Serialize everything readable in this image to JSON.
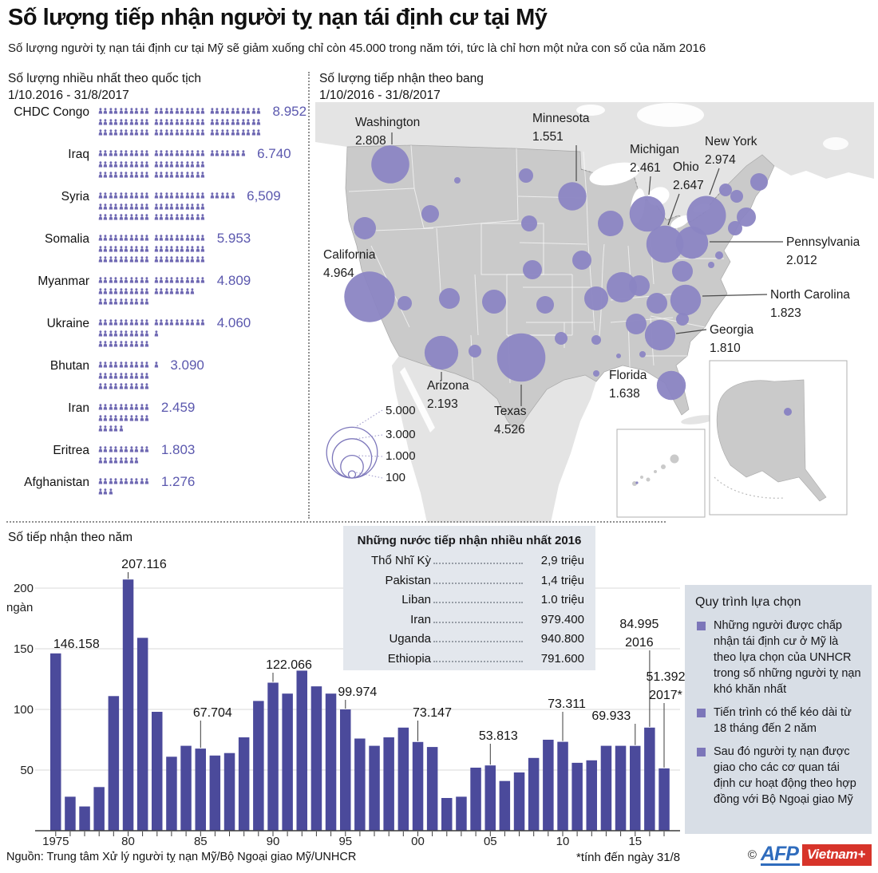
{
  "header": {
    "title": "Số lượng tiếp nhận người tỵ nạn tái định cư tại Mỹ",
    "subtitle": "Số lượng người tỵ nạn tái định cư tại Mỹ sẽ giảm xuống chỉ còn 45.000 trong năm tới, tức là chỉ hơn một nửa con số của năm 2016"
  },
  "colors": {
    "bar": "#4b4a9b",
    "pictogram_icon": "#6e68b2",
    "value_text": "#5b58ae",
    "map_bubble": "#8b85c3",
    "us_land": "#cacaca",
    "neighbor_land": "#e4e4e4",
    "table_bg": "#e3e7ed",
    "process_bg": "#d8dee6",
    "logo_blue": "#2f6cbd",
    "logo_red": "#d7342a"
  },
  "chart_data": [
    {
      "id": "nationalities",
      "type": "bar",
      "style": "pictogram",
      "title": "Số lượng nhiều nhất theo quốc tịch",
      "period": "1/10.2016 - 31/8/2017",
      "unit_per_icon": 100,
      "categories": [
        "CHDC Congo",
        "Iraq",
        "Syria",
        "Somalia",
        "Myanmar",
        "Ukraine",
        "Bhutan",
        "Iran",
        "Eritrea",
        "Afghanistan"
      ],
      "values": [
        8952,
        6740,
        6509,
        5953,
        4809,
        4060,
        3090,
        2459,
        1803,
        1276
      ],
      "display": [
        "8.952",
        "6.740",
        "6,509",
        "5.953",
        "4.809",
        "4.060",
        "3.090",
        "2.459",
        "1.803",
        "1.276"
      ]
    },
    {
      "id": "states",
      "type": "scatter",
      "style": "bubble-map",
      "title": "Số lượng tiếp nhận theo bang",
      "period": "1/10/2016 - 31/8/2017",
      "categories": [
        "Washington",
        "California",
        "Arizona",
        "Texas",
        "Minnesota",
        "Michigan",
        "Ohio",
        "New York",
        "Pennsylvania",
        "North Carolina",
        "Georgia",
        "Florida"
      ],
      "values": [
        2808,
        4964,
        2193,
        4526,
        1551,
        2461,
        2647,
        2974,
        2012,
        1823,
        1810,
        1638
      ],
      "display": [
        "2.808",
        "4.964",
        "2.193",
        "4.526",
        "1.551",
        "2.461",
        "2.647",
        "2.974",
        "2.012",
        "1.823",
        "1.810",
        "1.638"
      ],
      "legend": {
        "values": [
          5000,
          3000,
          1000,
          100
        ],
        "labels": [
          "5.000",
          "3.000",
          "1.000",
          "100"
        ]
      }
    },
    {
      "id": "by_year",
      "type": "bar",
      "title": "Số tiếp nhận theo năm",
      "ylabel": "ngàn",
      "ylim": [
        0,
        220
      ],
      "yticks": [
        50,
        100,
        150,
        200
      ],
      "ytick_labels": [
        "50",
        "100",
        "150",
        "200"
      ],
      "x": [
        1975,
        1976,
        1977,
        1978,
        1979,
        1980,
        1981,
        1982,
        1983,
        1984,
        1985,
        1986,
        1987,
        1988,
        1989,
        1990,
        1991,
        1992,
        1993,
        1994,
        1995,
        1996,
        1997,
        1998,
        1999,
        2000,
        2001,
        2002,
        2003,
        2004,
        2005,
        2006,
        2007,
        2008,
        2009,
        2010,
        2011,
        2012,
        2013,
        2014,
        2015,
        2016,
        2017
      ],
      "values": [
        146.158,
        28,
        20,
        36,
        111,
        207.116,
        159,
        98,
        61,
        70,
        67.704,
        62,
        64,
        77,
        107,
        122.066,
        113,
        132,
        119,
        113,
        99.974,
        76,
        70,
        77,
        85,
        73.147,
        69,
        27,
        28,
        52,
        53.813,
        41,
        48,
        60,
        75,
        73.311,
        56,
        58,
        70,
        70,
        69.933,
        84.995,
        51.392
      ],
      "xtick_labels": [
        [
          "1975",
          "1975"
        ],
        [
          "1980",
          "80"
        ],
        [
          "1985",
          "85"
        ],
        [
          "1990",
          "90"
        ],
        [
          "1995",
          "95"
        ],
        [
          "2000",
          "00"
        ],
        [
          "2005",
          "05"
        ],
        [
          "2010",
          "10"
        ],
        [
          "2015",
          "15"
        ]
      ],
      "point_labels": [
        {
          "x": 1975,
          "label": "146.158"
        },
        {
          "x": 1980,
          "label": "207.116"
        },
        {
          "x": 1985,
          "label": "67.704"
        },
        {
          "x": 1990,
          "label": "122.066"
        },
        {
          "x": 1995,
          "label": "99.974"
        },
        {
          "x": 2000,
          "label": "73.147"
        },
        {
          "x": 2005,
          "label": "53.813"
        },
        {
          "x": 2010,
          "label": "73.311"
        },
        {
          "x": 2015,
          "label": "69.933"
        },
        {
          "x": 2016,
          "label": "84.995",
          "sub": "2016"
        },
        {
          "x": 2017,
          "label": "51.392",
          "sub": "2017*"
        }
      ]
    },
    {
      "id": "top_receiving_2016",
      "type": "table",
      "title": "Những nước tiếp nhận nhiều nhất 2016",
      "rows": [
        [
          "Thổ Nhĩ Kỳ",
          "2,9 triệu"
        ],
        [
          "Pakistan",
          "1,4 triệu"
        ],
        [
          "Liban",
          "1.0 triệu"
        ],
        [
          "Iran",
          "979.400"
        ],
        [
          "Uganda",
          "940.800"
        ],
        [
          "Ethiopia",
          "791.600"
        ]
      ]
    }
  ],
  "process": {
    "title": "Quy trình lựa chọn",
    "bullets": [
      "Những người được chấp nhận tái định cư ở Mỹ là theo lựa chọn của UNHCR trong số những người tỵ nạn khó khăn nhất",
      "Tiến trình có thể kéo dài từ 18 tháng đến 2 năm",
      "Sau đó người tỵ nạn được giao cho các cơ quan tái định cư hoạt động theo hợp đồng với Bộ Ngoại giao Mỹ"
    ]
  },
  "footer": {
    "source": "Nguồn: Trung tâm Xử lý người tỵ nạn Mỹ/Bộ Ngoại giao Mỹ/UNHCR",
    "note": "*tính đến ngày 31/8",
    "copyright": "©",
    "logo_afp": "AFP",
    "logo_vn": "Vietnam+"
  }
}
